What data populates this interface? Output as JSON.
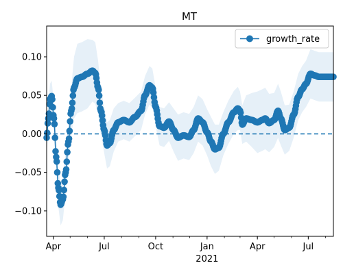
{
  "chart_data": {
    "type": "line",
    "title": "MT",
    "xlabel": "",
    "ylabel": "",
    "legend": {
      "placement": "top-right",
      "entries": [
        "growth_rate"
      ]
    },
    "grid": false,
    "ylim": [
      -0.133,
      0.14
    ],
    "xlim": [
      "2020-03-20",
      "2021-08-15"
    ],
    "x_tick_labels": [
      {
        "date": "2020-04-01",
        "label": "Apr"
      },
      {
        "date": "2020-07-01",
        "label": "Jul"
      },
      {
        "date": "2020-10-01",
        "label": "Oct"
      },
      {
        "date": "2021-01-01",
        "label": "Jan",
        "sublabel": "2021"
      },
      {
        "date": "2021-04-01",
        "label": "Apr"
      },
      {
        "date": "2021-07-01",
        "label": "Jul"
      }
    ],
    "y_ticks": [
      0.1,
      0.05,
      0.0,
      -0.05,
      -0.1
    ],
    "y_tick_labels": [
      "0.10",
      "0.05",
      "0.00",
      "−0.05",
      "−0.10"
    ],
    "reference_line": {
      "y": 0.0,
      "style": "dashed"
    },
    "colors": {
      "series": "#1f77b4",
      "band": "#d6e6f4"
    },
    "series": [
      {
        "name": "growth_rate",
        "marker": "circle",
        "points": [
          [
            "2020-03-20",
            -0.005
          ],
          [
            "2020-03-23",
            0.02
          ],
          [
            "2020-03-26",
            0.045
          ],
          [
            "2020-03-29",
            0.049
          ],
          [
            "2020-04-02",
            0.02
          ],
          [
            "2020-04-06",
            -0.03
          ],
          [
            "2020-04-10",
            -0.07
          ],
          [
            "2020-04-14",
            -0.092
          ],
          [
            "2020-04-18",
            -0.085
          ],
          [
            "2020-04-23",
            -0.05
          ],
          [
            "2020-04-28",
            -0.01
          ],
          [
            "2020-05-03",
            0.03
          ],
          [
            "2020-05-08",
            0.06
          ],
          [
            "2020-05-14",
            0.072
          ],
          [
            "2020-05-22",
            0.074
          ],
          [
            "2020-06-01",
            0.078
          ],
          [
            "2020-06-10",
            0.082
          ],
          [
            "2020-06-15",
            0.079
          ],
          [
            "2020-06-20",
            0.06
          ],
          [
            "2020-06-25",
            0.03
          ],
          [
            "2020-07-01",
            0.005
          ],
          [
            "2020-07-06",
            -0.015
          ],
          [
            "2020-07-11",
            -0.012
          ],
          [
            "2020-07-18",
            0.005
          ],
          [
            "2020-07-26",
            0.015
          ],
          [
            "2020-08-05",
            0.018
          ],
          [
            "2020-08-15",
            0.015
          ],
          [
            "2020-08-25",
            0.022
          ],
          [
            "2020-09-05",
            0.03
          ],
          [
            "2020-09-12",
            0.05
          ],
          [
            "2020-09-20",
            0.063
          ],
          [
            "2020-09-25",
            0.06
          ],
          [
            "2020-10-01",
            0.035
          ],
          [
            "2020-10-08",
            0.01
          ],
          [
            "2020-10-16",
            0.008
          ],
          [
            "2020-10-25",
            0.016
          ],
          [
            "2020-11-02",
            0.005
          ],
          [
            "2020-11-10",
            -0.005
          ],
          [
            "2020-11-20",
            -0.002
          ],
          [
            "2020-11-30",
            -0.004
          ],
          [
            "2020-12-08",
            0.005
          ],
          [
            "2020-12-16",
            0.02
          ],
          [
            "2020-12-24",
            0.015
          ],
          [
            "2021-01-01",
            0.002
          ],
          [
            "2021-01-08",
            -0.01
          ],
          [
            "2021-01-15",
            -0.02
          ],
          [
            "2021-01-22",
            -0.018
          ],
          [
            "2021-01-30",
            0.0
          ],
          [
            "2021-02-08",
            0.015
          ],
          [
            "2021-02-18",
            0.028
          ],
          [
            "2021-02-25",
            0.033
          ],
          [
            "2021-03-01",
            0.03
          ],
          [
            "2021-03-05",
            0.012
          ],
          [
            "2021-03-12",
            0.02
          ],
          [
            "2021-03-22",
            0.018
          ],
          [
            "2021-04-01",
            0.015
          ],
          [
            "2021-04-10",
            0.018
          ],
          [
            "2021-04-15",
            0.02
          ],
          [
            "2021-04-22",
            0.014
          ],
          [
            "2021-05-01",
            0.018
          ],
          [
            "2021-05-08",
            0.03
          ],
          [
            "2021-05-13",
            0.02
          ],
          [
            "2021-05-20",
            0.005
          ],
          [
            "2021-05-28",
            0.008
          ],
          [
            "2021-06-05",
            0.025
          ],
          [
            "2021-06-13",
            0.048
          ],
          [
            "2021-06-20",
            0.058
          ],
          [
            "2021-06-27",
            0.065
          ],
          [
            "2021-07-05",
            0.078
          ],
          [
            "2021-07-12",
            0.076
          ],
          [
            "2021-07-20",
            0.074
          ],
          [
            "2021-08-15",
            0.074
          ]
        ],
        "band_half_width": [
          0.02,
          0.02,
          0.02,
          0.02,
          0.02,
          0.022,
          0.025,
          0.027,
          0.027,
          0.027,
          0.027,
          0.03,
          0.04,
          0.045,
          0.045,
          0.045,
          0.04,
          0.04,
          0.035,
          0.03,
          0.03,
          0.03,
          0.03,
          0.028,
          0.025,
          0.025,
          0.025,
          0.025,
          0.025,
          0.025,
          0.025,
          0.025,
          0.025,
          0.025,
          0.025,
          0.025,
          0.028,
          0.03,
          0.03,
          0.03,
          0.03,
          0.03,
          0.03,
          0.03,
          0.032,
          0.032,
          0.03,
          0.028,
          0.028,
          0.028,
          0.028,
          0.025,
          0.025,
          0.03,
          0.035,
          0.04,
          0.04,
          0.04,
          0.038,
          0.035,
          0.035,
          0.035,
          0.032,
          0.03,
          0.03,
          0.03,
          0.03,
          0.03,
          0.032,
          0.032,
          0.032,
          0.032
        ]
      }
    ]
  }
}
